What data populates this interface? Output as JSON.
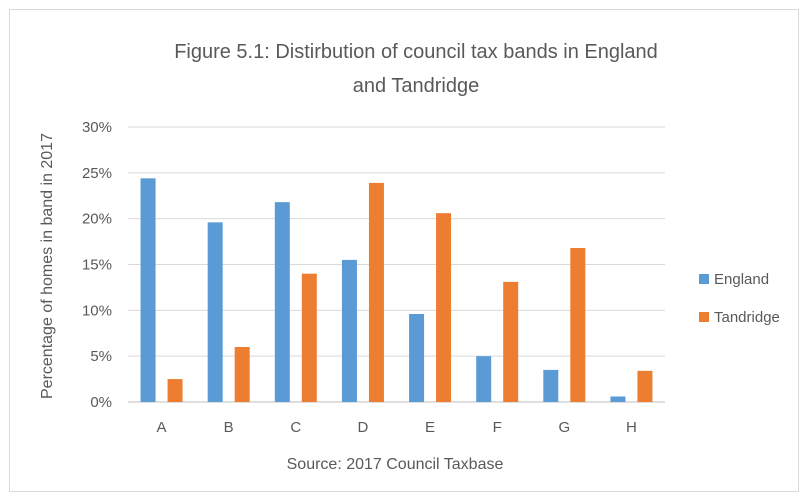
{
  "chart_data": {
    "type": "bar",
    "title_line1": "Figure 5.1: Distirbution of council tax bands in England",
    "title_line2": "and Tandridge",
    "xlabel": "Source: 2017 Council Taxbase",
    "ylabel": "Percentage of homes in band in 2017",
    "categories": [
      "A",
      "B",
      "C",
      "D",
      "E",
      "F",
      "G",
      "H"
    ],
    "series": [
      {
        "name": "England",
        "color": "#5b9bd5",
        "values": [
          24.4,
          19.6,
          21.8,
          15.5,
          9.6,
          5.0,
          3.5,
          0.6
        ]
      },
      {
        "name": "Tandridge",
        "color": "#ed7d31",
        "values": [
          2.5,
          6.0,
          14.0,
          23.9,
          20.6,
          13.1,
          16.8,
          3.4
        ]
      }
    ],
    "ylim": [
      0,
      30
    ],
    "yticks": [
      0,
      5,
      10,
      15,
      20,
      25,
      30
    ],
    "ytick_labels": [
      "0%",
      "5%",
      "10%",
      "15%",
      "20%",
      "25%",
      "30%"
    ],
    "grid": true,
    "legend_position": "right"
  }
}
